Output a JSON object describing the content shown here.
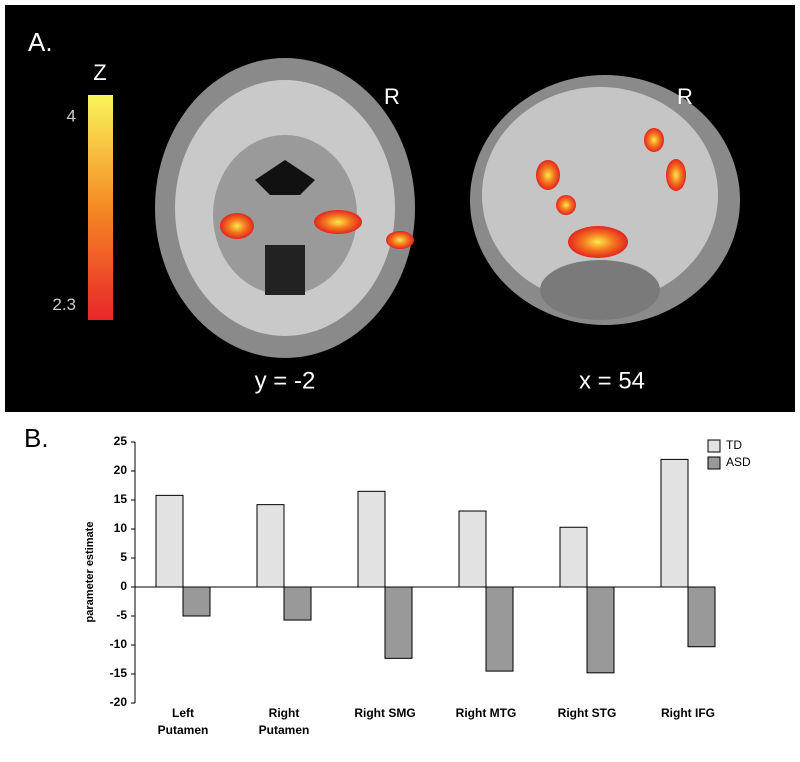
{
  "panel_a": {
    "label": "A.",
    "colorbar": {
      "title": "Z",
      "lim": [
        2.17,
        4.2
      ],
      "ticks": [
        2.3,
        4
      ]
    },
    "slices": [
      {
        "orientation": "R",
        "caption": "y = -2"
      },
      {
        "orientation": "R",
        "caption": "x = 54"
      }
    ]
  },
  "chart_data": {
    "type": "bar",
    "label": "B.",
    "ylabel": "parameter estimate",
    "categories": [
      "Left\nPutamen",
      "Right\nPutamen",
      "Right SMG",
      "Right MTG",
      "Right STG",
      "Right IFG"
    ],
    "series": [
      {
        "name": "TD",
        "color": "#e2e2e2",
        "values": [
          15.8,
          14.2,
          16.5,
          13.1,
          10.3,
          22.0
        ]
      },
      {
        "name": "ASD",
        "color": "#999999",
        "values": [
          -5.0,
          -5.7,
          -12.3,
          -14.5,
          -14.8,
          -10.3
        ]
      }
    ],
    "ylim": [
      -20,
      25
    ],
    "yticks": [
      -20,
      -15,
      -10,
      -5,
      0,
      5,
      10,
      15,
      20,
      25
    ],
    "legend": "upper right",
    "grid": false
  }
}
